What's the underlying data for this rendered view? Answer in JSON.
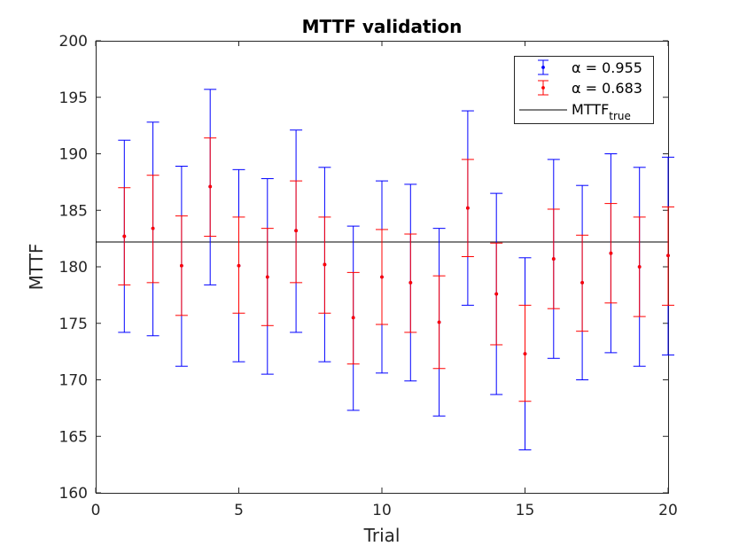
{
  "chart_data": {
    "type": "errorbar",
    "title": "MTTF validation",
    "xlabel": "Trial",
    "ylabel": "MTTF",
    "xlim": [
      0,
      20
    ],
    "ylim": [
      160,
      200
    ],
    "xticks": [
      "0",
      "5",
      "10",
      "15",
      "20"
    ],
    "yticks": [
      "160",
      "165",
      "170",
      "175",
      "180",
      "185",
      "190",
      "195",
      "200"
    ],
    "grid": false,
    "legend_position": "top-right",
    "reference_line": {
      "name_main": "MTTF",
      "name_sub": "true",
      "value": 182.2,
      "color": "#000000"
    },
    "series": [
      {
        "name": "α = 0.955",
        "color": "#0000ff",
        "trials": [
          1,
          2,
          3,
          4,
          5,
          6,
          7,
          8,
          9,
          10,
          11,
          12,
          13,
          14,
          15,
          16,
          17,
          18,
          19,
          20
        ],
        "center": [
          182.7,
          183.4,
          180.1,
          187.1,
          180.1,
          179.1,
          183.2,
          180.2,
          175.5,
          179.1,
          178.6,
          175.1,
          185.2,
          177.6,
          172.3,
          180.7,
          178.6,
          181.2,
          180.0,
          181.0
        ],
        "lower": [
          174.2,
          173.9,
          171.2,
          178.4,
          171.6,
          170.5,
          174.2,
          171.6,
          167.3,
          170.6,
          169.9,
          166.8,
          176.6,
          168.7,
          163.8,
          171.9,
          170.0,
          172.4,
          171.2,
          172.2
        ],
        "upper": [
          191.2,
          192.8,
          188.9,
          195.7,
          188.6,
          187.8,
          192.1,
          188.8,
          183.6,
          187.6,
          187.3,
          183.4,
          193.8,
          186.5,
          180.8,
          189.5,
          187.2,
          190.0,
          188.8,
          189.7
        ]
      },
      {
        "name": "α = 0.683",
        "color": "#ff0000",
        "trials": [
          1,
          2,
          3,
          4,
          5,
          6,
          7,
          8,
          9,
          10,
          11,
          12,
          13,
          14,
          15,
          16,
          17,
          18,
          19,
          20
        ],
        "center": [
          182.7,
          183.4,
          180.1,
          187.1,
          180.1,
          179.1,
          183.2,
          180.2,
          175.5,
          179.1,
          178.6,
          175.1,
          185.2,
          177.6,
          172.3,
          180.7,
          178.6,
          181.2,
          180.0,
          181.0
        ],
        "lower": [
          178.4,
          178.6,
          175.7,
          182.7,
          175.9,
          174.8,
          178.6,
          175.9,
          171.4,
          174.9,
          174.2,
          171.0,
          180.9,
          173.1,
          168.1,
          176.3,
          174.3,
          176.8,
          175.6,
          176.6
        ],
        "upper": [
          187.0,
          188.1,
          184.5,
          191.4,
          184.4,
          183.4,
          187.6,
          184.4,
          179.5,
          183.3,
          182.9,
          179.2,
          189.5,
          182.1,
          176.6,
          185.1,
          182.8,
          185.6,
          184.4,
          185.3
        ]
      }
    ]
  }
}
